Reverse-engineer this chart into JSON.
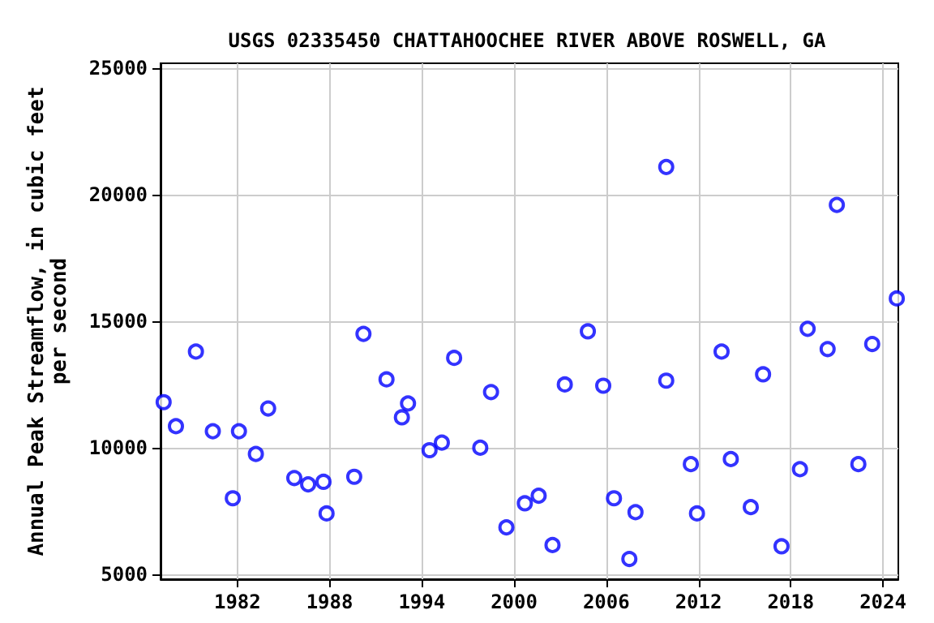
{
  "chart_data": {
    "type": "scatter",
    "title": "USGS 02335450 CHATTAHOOCHEE RIVER ABOVE ROSWELL, GA",
    "ylabel": "Annual Peak Streamflow, in cubic feet per second",
    "x": [
      1977.2,
      1978.0,
      1979.3,
      1980.4,
      1981.7,
      1982.1,
      1983.2,
      1984.0,
      1985.7,
      1986.6,
      1987.6,
      1987.8,
      1989.6,
      1990.2,
      1991.7,
      1992.7,
      1993.1,
      1994.5,
      1995.3,
      1996.1,
      1997.8,
      1998.5,
      1999.5,
      2000.7,
      2001.6,
      2002.5,
      2003.3,
      2004.8,
      2005.8,
      2006.5,
      2007.5,
      2007.9,
      2009.9,
      2009.9,
      2011.5,
      2011.9,
      2013.5,
      2014.1,
      2015.4,
      2016.2,
      2017.4,
      2018.6,
      2019.1,
      2020.4,
      2021.0,
      2022.4,
      2023.3,
      2024.9
    ],
    "series": [
      {
        "color": "#0000ff",
        "values": [
          11800,
          10850,
          13800,
          10650,
          8000,
          10650,
          9750,
          11550,
          8800,
          8550,
          8650,
          7400,
          8850,
          14500,
          12700,
          11200,
          11750,
          9900,
          10200,
          13550,
          10000,
          12200,
          6850,
          7800,
          8100,
          6150,
          12500,
          14600,
          12450,
          8000,
          5600,
          7450,
          21100,
          12650,
          9350,
          7400,
          13800,
          9550,
          7650,
          12900,
          6100,
          9150,
          14700,
          13900,
          19600,
          9350,
          14100,
          15900
        ]
      }
    ],
    "xlim": [
      1977,
      2025
    ],
    "xticks": [
      1982,
      1988,
      1994,
      2000,
      2006,
      2012,
      2018,
      2024
    ],
    "ylim": [
      4800,
      25200
    ],
    "yticks": [
      5000,
      10000,
      15000,
      20000,
      25000
    ],
    "grid": true,
    "marker": "circle"
  }
}
